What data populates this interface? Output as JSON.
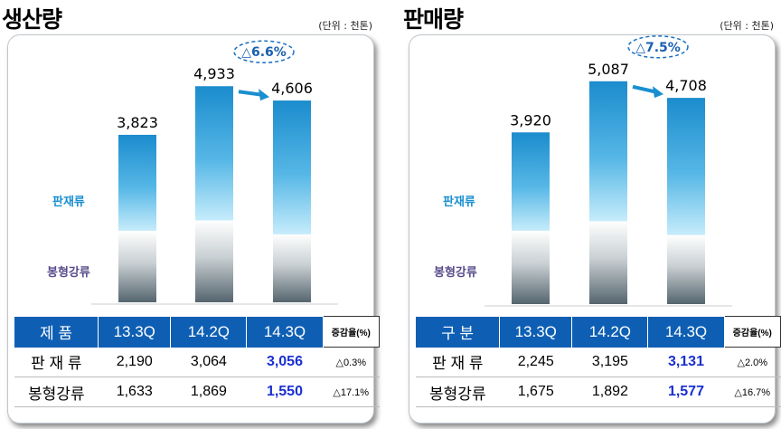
{
  "chart_data": [
    {
      "type": "bar",
      "title": "생산량",
      "unit": "(단위 : 천톤)",
      "categories": [
        "13.3Q",
        "14.2Q",
        "14.3Q"
      ],
      "series": [
        {
          "name": "판재류",
          "values": [
            2190,
            3064,
            3056
          ]
        },
        {
          "name": "봉형강류",
          "values": [
            1633,
            1869,
            1550
          ]
        }
      ],
      "totals": [
        "3,823",
        "4,933",
        "4,606"
      ],
      "total_values": [
        3823,
        4933,
        4606
      ],
      "change_badge": "△6.6%",
      "ylim": [
        0,
        5500
      ],
      "table": {
        "header": [
          "제 품",
          "13.3Q",
          "14.2Q",
          "14.3Q",
          "증감율(%)"
        ],
        "rows": [
          [
            "판 재 류",
            "2,190",
            "3,064",
            "3,056",
            "△0.3%"
          ],
          [
            "봉형강류",
            "1,633",
            "1,869",
            "1,550",
            "△17.1%"
          ]
        ]
      }
    },
    {
      "type": "bar",
      "title": "판매량",
      "unit": "(단위 : 천톤)",
      "categories": [
        "13.3Q",
        "14.2Q",
        "14.3Q"
      ],
      "series": [
        {
          "name": "판재류",
          "values": [
            2245,
            3195,
            3131
          ]
        },
        {
          "name": "봉형강류",
          "values": [
            1675,
            1892,
            1577
          ]
        }
      ],
      "totals": [
        "3,920",
        "5,087",
        "4,708"
      ],
      "total_values": [
        3920,
        5087,
        4708
      ],
      "change_badge": "△7.5%",
      "ylim": [
        0,
        5500
      ],
      "table": {
        "header": [
          "구 분",
          "13.3Q",
          "14.2Q",
          "14.3Q",
          "증감율(%)"
        ],
        "rows": [
          [
            "판 재 류",
            "2,245",
            "3,195",
            "3,131",
            "△2.0%"
          ],
          [
            "봉형강류",
            "1,675",
            "1,892",
            "1,577",
            "△16.7%"
          ]
        ]
      }
    }
  ],
  "colors": {
    "top_bar": "#1a8fd0",
    "bottom_bar": "#5f6e78",
    "header_bg": "#0e5fb4",
    "highlight": "#1a2fd0"
  }
}
